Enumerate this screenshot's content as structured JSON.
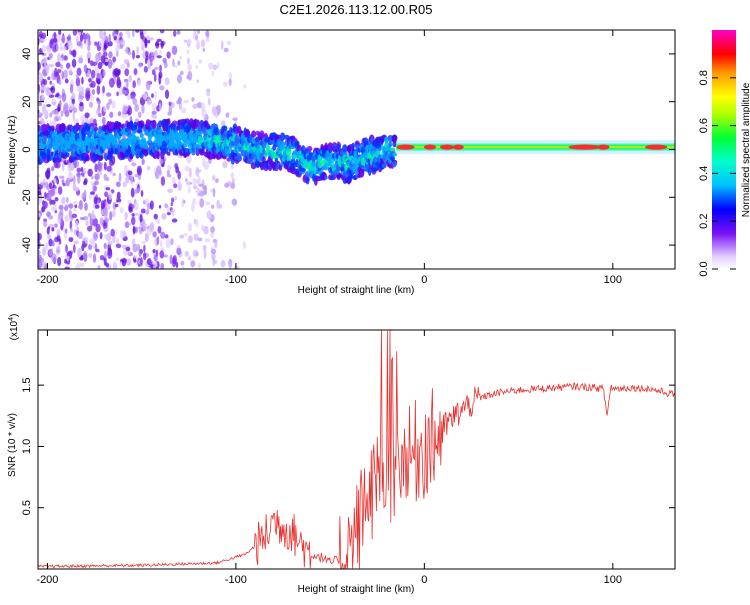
{
  "title": "C2E1.2026.113.12.00.R05",
  "chart_data": [
    {
      "type": "heatmap",
      "xlabel": "Height of straight line (km)",
      "ylabel": "Frequency (Hz)",
      "xlim": [
        -205,
        133
      ],
      "ylim": [
        -50,
        50
      ],
      "xticks": [
        -200,
        -100,
        0,
        100
      ],
      "xtick_labels": [
        "-200",
        "-100",
        "0",
        "100"
      ],
      "yticks": [
        -40,
        -20,
        0,
        20,
        40
      ],
      "ytick_labels": [
        "-40",
        "-20",
        "0",
        "20",
        "40"
      ],
      "ridge": {
        "x": [
          -205,
          -180,
          -150,
          -130,
          -110,
          -90,
          -70,
          -60,
          -50,
          -40,
          -30,
          -20,
          -15,
          0,
          50,
          133
        ],
        "y": [
          2,
          3,
          4,
          5,
          4,
          0,
          -2,
          -7,
          -5,
          -6,
          -3,
          0,
          0,
          1,
          1,
          1
        ]
      },
      "colorbar": {
        "label": "Normalized spectral amplitude",
        "range": [
          0,
          1
        ],
        "ticks": [
          0.0,
          0.2,
          0.4,
          0.6,
          0.8
        ],
        "tick_labels": [
          "0.0",
          "0.2",
          "0.4",
          "0.6",
          "0.8"
        ]
      }
    },
    {
      "type": "line",
      "xlabel": "Height of straight line (km)",
      "ylabel": "SNR (10 * v/v)",
      "yscale_label": "(x10",
      "yscale_exp": "4",
      "xlim": [
        -205,
        133
      ],
      "ylim": [
        0,
        1.95
      ],
      "xticks": [
        -200,
        -100,
        0,
        100
      ],
      "xtick_labels": [
        "-200",
        "-100",
        "0",
        "100"
      ],
      "yticks": [
        0.5,
        1.0,
        1.5
      ],
      "ytick_labels": [
        "0.5",
        "1.0",
        "1.5"
      ],
      "color": "#e8312e",
      "series": [
        {
          "name": "SNR",
          "x": [
            -205,
            -150,
            -110,
            -95,
            -85,
            -80,
            -75,
            -70,
            -65,
            -60,
            -55,
            -50,
            -45,
            -40,
            -35,
            -30,
            -25,
            -20,
            -15,
            -10,
            -5,
            0,
            5,
            10,
            20,
            30,
            40,
            50,
            60,
            70,
            80,
            90,
            95,
            97,
            99,
            100,
            110,
            120,
            125,
            133
          ],
          "y": [
            0.02,
            0.03,
            0.05,
            0.12,
            0.25,
            0.4,
            0.35,
            0.3,
            0.2,
            0.12,
            0.1,
            0.05,
            0.08,
            0.15,
            0.35,
            0.6,
            0.7,
            0.8,
            0.75,
            0.85,
            0.95,
            1.0,
            1.05,
            1.15,
            1.3,
            1.4,
            1.44,
            1.46,
            1.47,
            1.48,
            1.49,
            1.48,
            1.47,
            1.25,
            1.5,
            1.47,
            1.48,
            1.47,
            1.45,
            1.42
          ]
        }
      ]
    }
  ]
}
